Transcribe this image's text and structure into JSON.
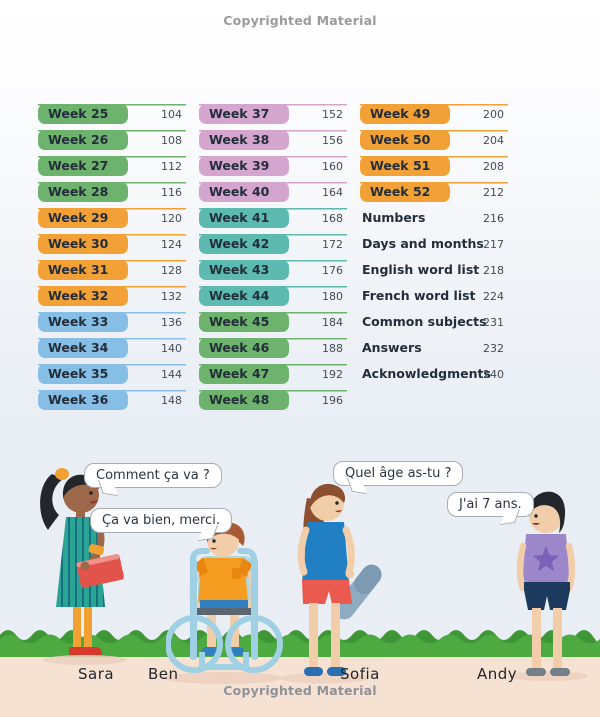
{
  "page": {
    "top_watermark": "Copyrighted Material",
    "bottom_watermark": "Copyrighted Material"
  },
  "contents": {
    "colors": {
      "green": "#6db36e",
      "orange": "#f1a136",
      "blue": "#87bee5",
      "pink": "#d4a6cf",
      "teal": "#5dbab0"
    },
    "columns": [
      {
        "entries": [
          {
            "label": "Week 25",
            "page": "104",
            "color": "green"
          },
          {
            "label": "Week 26",
            "page": "108",
            "color": "green"
          },
          {
            "label": "Week 27",
            "page": "112",
            "color": "green"
          },
          {
            "label": "Week 28",
            "page": "116",
            "color": "green"
          },
          {
            "label": "Week 29",
            "page": "120",
            "color": "orange"
          },
          {
            "label": "Week 30",
            "page": "124",
            "color": "orange"
          },
          {
            "label": "Week 31",
            "page": "128",
            "color": "orange"
          },
          {
            "label": "Week 32",
            "page": "132",
            "color": "orange"
          },
          {
            "label": "Week 33",
            "page": "136",
            "color": "blue"
          },
          {
            "label": "Week 34",
            "page": "140",
            "color": "blue"
          },
          {
            "label": "Week 35",
            "page": "144",
            "color": "blue"
          },
          {
            "label": "Week 36",
            "page": "148",
            "color": "blue"
          }
        ]
      },
      {
        "entries": [
          {
            "label": "Week 37",
            "page": "152",
            "color": "pink"
          },
          {
            "label": "Week 38",
            "page": "156",
            "color": "pink"
          },
          {
            "label": "Week 39",
            "page": "160",
            "color": "pink"
          },
          {
            "label": "Week 40",
            "page": "164",
            "color": "pink"
          },
          {
            "label": "Week 41",
            "page": "168",
            "color": "teal"
          },
          {
            "label": "Week 42",
            "page": "172",
            "color": "teal"
          },
          {
            "label": "Week 43",
            "page": "176",
            "color": "teal"
          },
          {
            "label": "Week 44",
            "page": "180",
            "color": "teal"
          },
          {
            "label": "Week 45",
            "page": "184",
            "color": "green"
          },
          {
            "label": "Week 46",
            "page": "188",
            "color": "green"
          },
          {
            "label": "Week 47",
            "page": "192",
            "color": "green"
          },
          {
            "label": "Week 48",
            "page": "196",
            "color": "green"
          }
        ]
      },
      {
        "entries": [
          {
            "label": "Week 49",
            "page": "200",
            "color": "orange"
          },
          {
            "label": "Week 50",
            "page": "204",
            "color": "orange"
          },
          {
            "label": "Week 51",
            "page": "208",
            "color": "orange"
          },
          {
            "label": "Week 52",
            "page": "212",
            "color": "orange"
          },
          {
            "label": "Numbers",
            "page": "216"
          },
          {
            "label": "Days and months",
            "page": "217"
          },
          {
            "label": "English word list",
            "page": "218"
          },
          {
            "label": "French word list",
            "page": "224"
          },
          {
            "label": "Common subjects",
            "page": "231"
          },
          {
            "label": "Answers",
            "page": "232"
          },
          {
            "label": "Acknowledgments",
            "page": "240"
          }
        ]
      }
    ]
  },
  "scene": {
    "bubbles": [
      {
        "text": "Comment ça va ?",
        "speaker": "Sara"
      },
      {
        "text": "Ça va bien, merci.",
        "speaker": "Ben"
      },
      {
        "text": "Quel âge as-tu ?",
        "speaker": "Sofia"
      },
      {
        "text": "J'ai 7 ans.",
        "speaker": "Andy"
      }
    ],
    "names": [
      "Sara",
      "Ben",
      "Sofia",
      "Andy"
    ]
  }
}
